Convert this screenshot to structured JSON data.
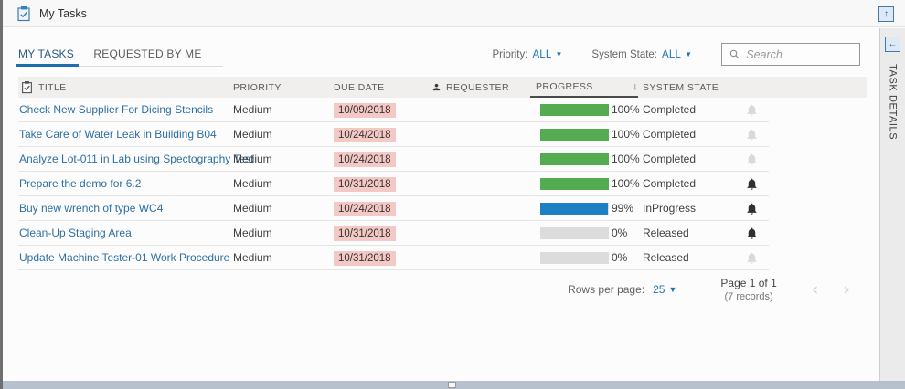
{
  "colors": {
    "accent_blue": "#1b75b5",
    "link_blue": "#2d6fa3",
    "tab_underline": "#1b6fae",
    "progress_green": "#54ab50",
    "progress_blue": "#1d80c4",
    "progress_track": "#dcdcdc",
    "due_date_bg": "#f3c8c5",
    "table_header_bg": "#f1efee"
  },
  "topbar": {
    "title": "My Tasks"
  },
  "sidebar": {
    "title": "TASK DETAILS"
  },
  "tabs": [
    {
      "label": "MY TASKS",
      "active": true
    },
    {
      "label": "REQUESTED BY ME",
      "active": false
    }
  ],
  "filters": {
    "priority_label": "Priority:",
    "priority_value": "ALL",
    "system_state_label": "System State:",
    "system_state_value": "ALL",
    "search_placeholder": "Search"
  },
  "table": {
    "columns": {
      "title": "TITLE",
      "priority": "PRIORITY",
      "due_date": "DUE DATE",
      "requester": "REQUESTER",
      "progress": "PROGRESS",
      "system_state": "SYSTEM STATE"
    },
    "sort": {
      "column": "PROGRESS",
      "direction": "desc"
    },
    "rows": [
      {
        "title": "Check New Supplier For Dicing Stencils",
        "priority": "Medium",
        "due_date": "10/09/2018",
        "requester": "",
        "progress_pct": 100,
        "progress_label": "100%",
        "system_state": "Completed",
        "bar_color": "#54ab50",
        "bell": "light"
      },
      {
        "title": "Take Care of Water Leak in Building B04",
        "priority": "Medium",
        "due_date": "10/24/2018",
        "requester": "",
        "progress_pct": 100,
        "progress_label": "100%",
        "system_state": "Completed",
        "bar_color": "#54ab50",
        "bell": "light"
      },
      {
        "title": "Analyze Lot-011 in Lab using Spectography Test",
        "priority": "Medium",
        "due_date": "10/24/2018",
        "requester": "",
        "progress_pct": 100,
        "progress_label": "100%",
        "system_state": "Completed",
        "bar_color": "#54ab50",
        "bell": "light"
      },
      {
        "title": "Prepare the demo for 6.2",
        "priority": "Medium",
        "due_date": "10/31/2018",
        "requester": "",
        "progress_pct": 100,
        "progress_label": "100%",
        "system_state": "Completed",
        "bar_color": "#54ab50",
        "bell": "dark"
      },
      {
        "title": "Buy new wrench of type WC4",
        "priority": "Medium",
        "due_date": "10/24/2018",
        "requester": "",
        "progress_pct": 99,
        "progress_label": "99%",
        "system_state": "InProgress",
        "bar_color": "#1d80c4",
        "bell": "dark"
      },
      {
        "title": "Clean-Up Staging Area",
        "priority": "Medium",
        "due_date": "10/31/2018",
        "requester": "",
        "progress_pct": 0,
        "progress_label": "0%",
        "system_state": "Released",
        "bar_color": "#dcdcdc",
        "bell": "dark"
      },
      {
        "title": "Update Machine Tester-01 Work Procedure",
        "priority": "Medium",
        "due_date": "10/31/2018",
        "requester": "",
        "progress_pct": 0,
        "progress_label": "0%",
        "system_state": "Released",
        "bar_color": "#dcdcdc",
        "bell": "light"
      }
    ]
  },
  "pagination": {
    "rows_per_page_label": "Rows per page:",
    "rows_per_page_value": "25",
    "page_label": "Page 1 of 1",
    "records_label": "(7 records)"
  }
}
